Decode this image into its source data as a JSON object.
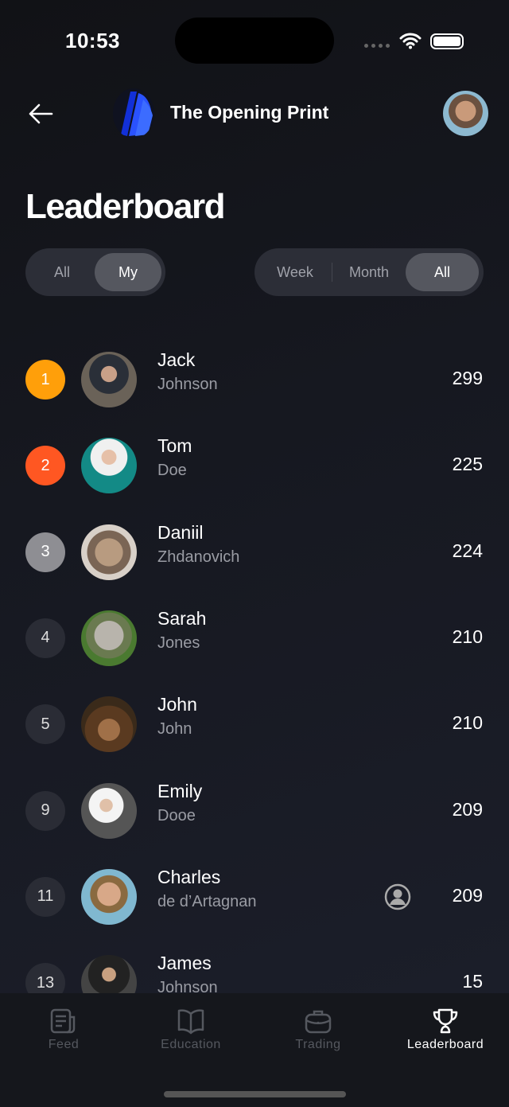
{
  "status_bar": {
    "time": "10:53"
  },
  "header": {
    "app_title": "The Opening Print"
  },
  "page_title": "Leaderboard",
  "scope_filter": {
    "options": [
      "All",
      "My"
    ],
    "selected": "My"
  },
  "period_filter": {
    "options": [
      "Week",
      "Month",
      "All"
    ],
    "selected": "All"
  },
  "leaders": [
    {
      "rank": "1",
      "first": "Jack",
      "last": "Johnson",
      "score": "299",
      "rank_color": "#FF9F0A"
    },
    {
      "rank": "2",
      "first": "Tom",
      "last": "Doe",
      "score": "225",
      "rank_color": "#FF5722"
    },
    {
      "rank": "3",
      "first": "Daniil",
      "last": "Zhdanovich",
      "score": "224",
      "rank_color": "#8E8E93"
    },
    {
      "rank": "4",
      "first": "Sarah",
      "last": "Jones",
      "score": "210"
    },
    {
      "rank": "5",
      "first": "John",
      "last": "John",
      "score": "210"
    },
    {
      "rank": "9",
      "first": "Emily",
      "last": "Dooe",
      "score": "209"
    },
    {
      "rank": "11",
      "first": "Charles",
      "last": "de d’Artagnan",
      "score": "209",
      "is_current_user": true
    },
    {
      "rank": "13",
      "first": "James",
      "last": "Johnson",
      "score": "15"
    }
  ],
  "tabs": [
    {
      "label": "Feed",
      "icon": "newspaper-icon"
    },
    {
      "label": "Education",
      "icon": "book-icon"
    },
    {
      "label": "Trading",
      "icon": "briefcase-icon"
    },
    {
      "label": "Leaderboard",
      "icon": "trophy-icon",
      "active": true
    }
  ]
}
